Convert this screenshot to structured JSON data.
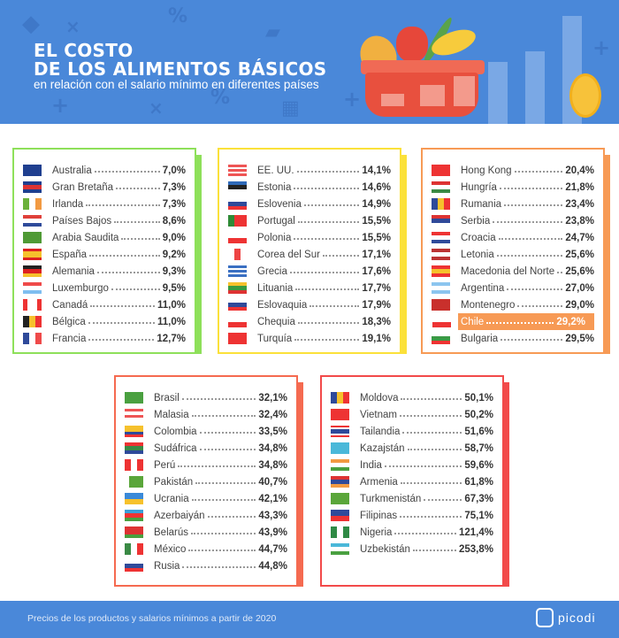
{
  "header": {
    "title_line1": "EL COSTO",
    "title_line2": "DE LOS ALIMENTOS BÁSICOS",
    "subtitle": "en relación con el salario mínimo en diferentes países"
  },
  "footer": {
    "note": "Precios de los productos y salarios mínimos a partir de 2020",
    "brand": "picodi"
  },
  "colors": {
    "header_bg": "#4a88d9",
    "highlight": "#f79a55"
  },
  "cards": [
    {
      "border": "#8ee05a",
      "rows": [
        {
          "name": "Australia",
          "value": "7,0%",
          "flag": [
            "h",
            "#1f3f8f"
          ]
        },
        {
          "name": "Gran Bretaña",
          "value": "7,3%",
          "flag": [
            "h",
            "#1f3f8f",
            "#d33",
            "#1f3f8f"
          ]
        },
        {
          "name": "Irlanda",
          "value": "7,3%",
          "flag": [
            "v",
            "#6bb13a",
            "#fff",
            "#f29a42"
          ]
        },
        {
          "name": "Países Bajos",
          "value": "8,6%",
          "flag": [
            "h",
            "#e0403a",
            "#fff",
            "#2f4a9a"
          ]
        },
        {
          "name": "Arabia Saudita",
          "value": "9,0%",
          "flag": [
            "h",
            "#4f9a35"
          ]
        },
        {
          "name": "España",
          "value": "9,2%",
          "flag": [
            "h",
            "#d22",
            "#f6c12c",
            "#f6c12c",
            "#d22"
          ]
        },
        {
          "name": "Alemania",
          "value": "9,3%",
          "flag": [
            "h",
            "#222",
            "#d22",
            "#f6c12c"
          ]
        },
        {
          "name": "Luxemburgo",
          "value": "9,5%",
          "flag": [
            "h",
            "#ef4a4a",
            "#fff",
            "#7fbef0"
          ]
        },
        {
          "name": "Canadá",
          "value": "11,0%",
          "flag": [
            "v",
            "#e33",
            "#fff",
            "#fff",
            "#e33"
          ]
        },
        {
          "name": "Bélgica",
          "value": "11,0%",
          "flag": [
            "v",
            "#222",
            "#f6c12c",
            "#e33"
          ]
        },
        {
          "name": "Francia",
          "value": "12,7%",
          "flag": [
            "v",
            "#2f4a9a",
            "#fff",
            "#ef4a4a"
          ]
        }
      ]
    },
    {
      "border": "#fbe13a",
      "rows": [
        {
          "name": "EE. UU.",
          "value": "14,1%",
          "flag": [
            "h",
            "#e55",
            "#fff",
            "#e55",
            "#fff",
            "#e55"
          ]
        },
        {
          "name": "Estonia",
          "value": "14,6%",
          "flag": [
            "h",
            "#2f6ab9",
            "#222",
            "#fff"
          ]
        },
        {
          "name": "Eslovenia",
          "value": "14,9%",
          "flag": [
            "h",
            "#fff",
            "#2f4a9a",
            "#e33"
          ]
        },
        {
          "name": "Portugal",
          "value": "15,5%",
          "flag": [
            "v",
            "#2f8a35",
            "#e33",
            "#e33"
          ]
        },
        {
          "name": "Polonia",
          "value": "15,5%",
          "flag": [
            "h",
            "#fff",
            "#e33"
          ]
        },
        {
          "name": "Corea del Sur",
          "value": "17,1%",
          "flag": [
            "v",
            "#fff",
            "#e44",
            "#fff"
          ]
        },
        {
          "name": "Grecia",
          "value": "17,6%",
          "flag": [
            "h",
            "#3a6fc2",
            "#fff",
            "#3a6fc2",
            "#fff",
            "#3a6fc2"
          ]
        },
        {
          "name": "Lituania",
          "value": "17,7%",
          "flag": [
            "h",
            "#f6c12c",
            "#3a9a40",
            "#d33"
          ]
        },
        {
          "name": "Eslovaquia",
          "value": "17,9%",
          "flag": [
            "h",
            "#fff",
            "#2f4a9a",
            "#e33"
          ]
        },
        {
          "name": "Chequia",
          "value": "18,3%",
          "flag": [
            "h",
            "#fff",
            "#e33"
          ]
        },
        {
          "name": "Turquía",
          "value": "19,1%",
          "flag": [
            "h",
            "#e33"
          ]
        }
      ]
    },
    {
      "border": "#f79a55",
      "rows": [
        {
          "name": "Hong Kong",
          "value": "20,4%",
          "flag": [
            "h",
            "#e33"
          ]
        },
        {
          "name": "Hungría",
          "value": "21,8%",
          "flag": [
            "h",
            "#d33",
            "#fff",
            "#3a8a45"
          ]
        },
        {
          "name": "Rumania",
          "value": "23,4%",
          "flag": [
            "v",
            "#2f4a9a",
            "#f6c12c",
            "#e33"
          ]
        },
        {
          "name": "Serbia",
          "value": "23,8%",
          "flag": [
            "h",
            "#d33",
            "#2f4a9a",
            "#fff"
          ]
        },
        {
          "name": "Croacia",
          "value": "24,7%",
          "flag": [
            "h",
            "#e33",
            "#fff",
            "#2f4a9a"
          ]
        },
        {
          "name": "Letonia",
          "value": "25,6%",
          "flag": [
            "h",
            "#b33",
            "#fff",
            "#b33"
          ]
        },
        {
          "name": "Macedonia del Norte",
          "value": "25,6%",
          "flag": [
            "h",
            "#e33",
            "#f6c12c",
            "#e33"
          ]
        },
        {
          "name": "Argentina",
          "value": "27,0%",
          "flag": [
            "h",
            "#8cc5ef",
            "#fff",
            "#8cc5ef"
          ]
        },
        {
          "name": "Montenegro",
          "value": "29,0%",
          "flag": [
            "h",
            "#c9302c"
          ]
        },
        {
          "name": "Chile",
          "value": "29,2%",
          "highlight": true,
          "flag": [
            "h",
            "#fff",
            "#e33"
          ]
        },
        {
          "name": "Bulgaria",
          "value": "29,5%",
          "flag": [
            "h",
            "#fff",
            "#3a9a45",
            "#e33"
          ]
        }
      ]
    },
    {
      "border": "#f56a50",
      "rows": [
        {
          "name": "Brasil",
          "value": "32,1%",
          "flag": [
            "h",
            "#4aa040"
          ]
        },
        {
          "name": "Malasia",
          "value": "32,4%",
          "flag": [
            "h",
            "#e55",
            "#fff",
            "#e55",
            "#fff"
          ]
        },
        {
          "name": "Colombia",
          "value": "33,5%",
          "flag": [
            "h",
            "#f6c12c",
            "#f6c12c",
            "#2f4a9a",
            "#e33"
          ]
        },
        {
          "name": "Sudáfrica",
          "value": "34,8%",
          "flag": [
            "h",
            "#e33",
            "#3a8a45",
            "#2f4a9a"
          ]
        },
        {
          "name": "Perú",
          "value": "34,8%",
          "flag": [
            "v",
            "#e33",
            "#fff",
            "#e33"
          ]
        },
        {
          "name": "Pakistán",
          "value": "40,7%",
          "flag": [
            "v",
            "#fff",
            "#5aa63a",
            "#5aa63a",
            "#5aa63a"
          ]
        },
        {
          "name": "Ucrania",
          "value": "42,1%",
          "flag": [
            "h",
            "#3a8ad9",
            "#f6c12c"
          ]
        },
        {
          "name": "Azerbaiyán",
          "value": "43,3%",
          "flag": [
            "h",
            "#3aa0d9",
            "#e33",
            "#4aa040"
          ]
        },
        {
          "name": "Belarús",
          "value": "43,9%",
          "flag": [
            "h",
            "#d33",
            "#d33",
            "#4aa040"
          ]
        },
        {
          "name": "México",
          "value": "44,7%",
          "flag": [
            "v",
            "#3a8a45",
            "#fff",
            "#e33"
          ]
        },
        {
          "name": "Rusia",
          "value": "44,8%",
          "flag": [
            "h",
            "#fff",
            "#2f4a9a",
            "#e33"
          ]
        }
      ]
    },
    {
      "border": "#f24a4a",
      "rows": [
        {
          "name": "Moldova",
          "value": "50,1%",
          "flag": [
            "v",
            "#2f4a9a",
            "#f6c12c",
            "#e33"
          ]
        },
        {
          "name": "Vietnam",
          "value": "50,2%",
          "flag": [
            "h",
            "#e33"
          ]
        },
        {
          "name": "Tailandia",
          "value": "51,6%",
          "flag": [
            "h",
            "#e33",
            "#fff",
            "#2f4a9a",
            "#2f4a9a",
            "#fff",
            "#e33"
          ]
        },
        {
          "name": "Kazajstán",
          "value": "58,7%",
          "flag": [
            "h",
            "#4ab8d9"
          ]
        },
        {
          "name": "India",
          "value": "59,6%",
          "flag": [
            "h",
            "#f29a42",
            "#fff",
            "#4aa040"
          ]
        },
        {
          "name": "Armenia",
          "value": "61,8%",
          "flag": [
            "h",
            "#d33",
            "#2f4a9a",
            "#f29a42"
          ]
        },
        {
          "name": "Turkmenistán",
          "value": "67,3%",
          "flag": [
            "h",
            "#5aa63a"
          ]
        },
        {
          "name": "Filipinas",
          "value": "75,1%",
          "flag": [
            "h",
            "#2f4a9a",
            "#e33"
          ]
        },
        {
          "name": "Nigeria",
          "value": "121,4%",
          "flag": [
            "v",
            "#2f8a45",
            "#fff",
            "#2f8a45"
          ]
        },
        {
          "name": "Uzbekistán",
          "value": "253,8%",
          "flag": [
            "h",
            "#4ab8d9",
            "#fff",
            "#4aa040"
          ]
        }
      ]
    }
  ]
}
